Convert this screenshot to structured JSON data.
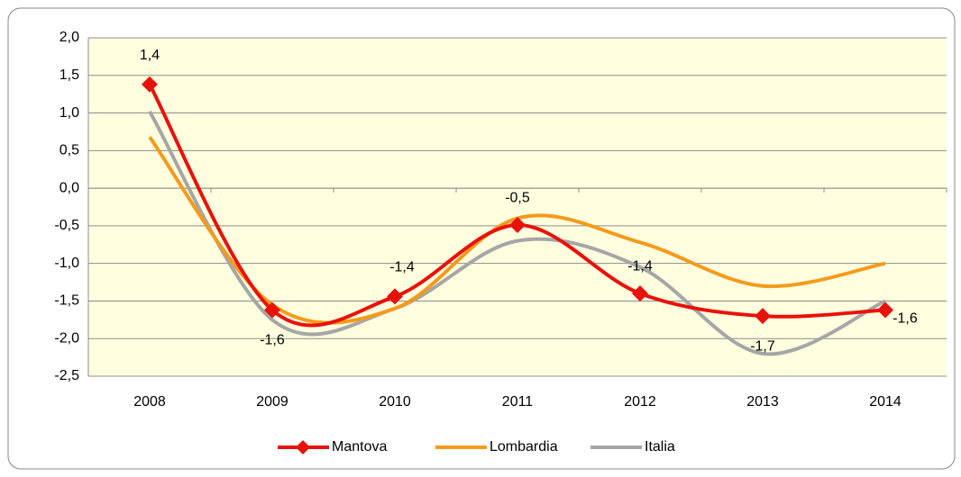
{
  "chart_data": {
    "type": "line",
    "categories": [
      "2008",
      "2009",
      "2010",
      "2011",
      "2012",
      "2013",
      "2014"
    ],
    "series": [
      {
        "name": "Mantova",
        "color": "#e8120c",
        "marker": "diamond",
        "values": [
          1.38,
          -1.62,
          -1.44,
          -0.49,
          -1.4,
          -1.7,
          -1.62
        ],
        "value_labels": [
          "1,4",
          "-1,6",
          "-1,4",
          "-0,5",
          "-1,4",
          "-1,7",
          "-1,6"
        ]
      },
      {
        "name": "Lombardia",
        "color": "#f59a1b",
        "values": [
          0.68,
          -1.55,
          -1.6,
          -0.4,
          -0.72,
          -1.3,
          -1.0
        ]
      },
      {
        "name": "Italia",
        "color": "#a6a6a6",
        "values": [
          1.02,
          -1.75,
          -1.6,
          -0.7,
          -1.05,
          -2.2,
          -1.5
        ]
      }
    ],
    "ylim": [
      -2.5,
      2.0
    ],
    "yticks": [
      {
        "value": -2.5,
        "label": "-2,5"
      },
      {
        "value": -2.0,
        "label": "-2,0"
      },
      {
        "value": -1.5,
        "label": "-1,5"
      },
      {
        "value": -1.0,
        "label": "-1,0"
      },
      {
        "value": -0.5,
        "label": "-0,5"
      },
      {
        "value": 0,
        "label": "0,0"
      },
      {
        "value": 0.5,
        "label": "0,5"
      },
      {
        "value": 1.0,
        "label": "1,0"
      },
      {
        "value": 1.5,
        "label": "1,5"
      },
      {
        "value": 2.0,
        "label": "2,0"
      }
    ],
    "grid": true,
    "smooth": true,
    "legend": "bottom"
  }
}
